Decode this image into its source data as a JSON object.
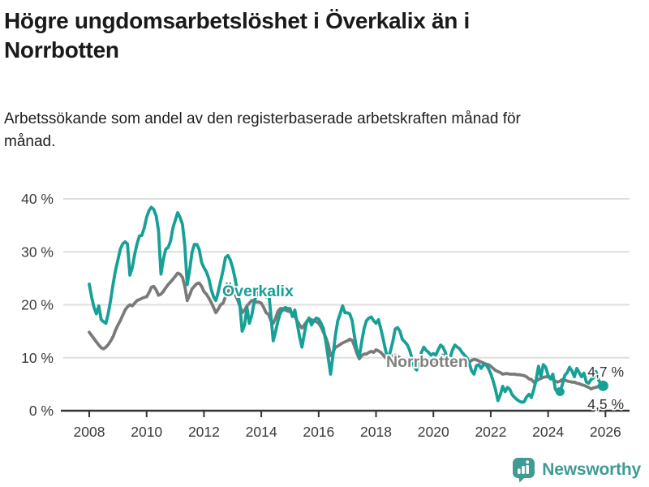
{
  "header": {
    "title": "Högre ungdomsarbetslöshet i Överkalix än i Norrbotten",
    "subtitle": "Arbetssökande som andel av den registerbaserade arbetskraften månad för månad."
  },
  "chart_data": {
    "type": "line",
    "title": "Högre ungdomsarbetslöshet i Överkalix än i Norrbotten",
    "x_unit": "month",
    "x_start_year": 2008,
    "x_end_label": "Nov 2025",
    "x_tick_labels": [
      "2008",
      "2010",
      "2012",
      "2014",
      "2016",
      "2018",
      "2020",
      "2022",
      "2024",
      "2026"
    ],
    "y_tick_labels": [
      "0 %",
      "10 %",
      "20 %",
      "30 %",
      "40 %"
    ],
    "ylim": [
      0,
      42
    ],
    "grid": true,
    "legend_position": "inline-labels",
    "series": [
      {
        "name": "Norrbotten",
        "color": "#7a7a7a",
        "label_color": "#808080",
        "values": [
          14.8,
          14.2,
          13.6,
          13.0,
          12.4,
          11.9,
          11.7,
          12.0,
          12.5,
          13.2,
          14.0,
          15.2,
          16.2,
          17.0,
          18.0,
          19.0,
          19.6,
          20.0,
          19.8,
          20.3,
          20.8,
          21.0,
          21.2,
          21.4,
          21.5,
          22.3,
          23.3,
          23.5,
          22.8,
          21.8,
          22.0,
          22.5,
          23.2,
          23.8,
          24.3,
          24.8,
          25.4,
          26.0,
          25.8,
          25.2,
          23.5,
          20.8,
          21.8,
          23.0,
          23.5,
          24.0,
          24.1,
          23.5,
          22.5,
          22.0,
          21.3,
          20.5,
          19.5,
          18.5,
          19.2,
          20.0,
          20.3,
          21.5,
          22.5,
          23.0,
          22.8,
          22.0,
          21.0,
          19.8,
          18.5,
          19.0,
          19.8,
          20.3,
          20.8,
          20.8,
          20.5,
          20.5,
          20.3,
          19.5,
          18.5,
          18.2,
          17.0,
          16.5,
          17.5,
          18.8,
          19.3,
          19.3,
          19.0,
          18.8,
          18.7,
          18.3,
          17.8,
          17.0,
          16.2,
          15.6,
          16.2,
          16.8,
          17.2,
          17.2,
          17.0,
          16.8,
          16.5,
          15.8,
          14.8,
          13.8,
          12.5,
          10.4,
          11.0,
          12.0,
          12.2,
          12.5,
          12.8,
          13.0,
          13.2,
          13.5,
          13.3,
          12.2,
          10.8,
          9.8,
          10.4,
          10.7,
          10.7,
          11.0,
          11.2,
          11.0,
          11.5,
          11.3,
          11.0,
          10.5,
          10.0,
          9.7,
          10.0,
          10.3,
          10.5,
          10.3,
          10.0,
          9.8,
          9.7,
          9.5,
          9.4,
          9.2,
          9.0,
          8.9,
          9.2,
          9.4,
          9.4,
          9.3,
          9.2,
          9.2,
          9.2,
          9.0,
          9.5,
          10.2,
          10.5,
          10.3,
          10.0,
          9.8,
          9.6,
          9.4,
          9.3,
          9.2,
          9.4,
          9.3,
          9.2,
          9.2,
          9.5,
          9.7,
          9.6,
          9.4,
          9.2,
          9.0,
          8.8,
          8.7,
          8.4,
          8.0,
          7.6,
          7.4,
          7.2,
          6.9,
          7.0,
          7.0,
          6.9,
          6.9,
          6.9,
          6.8,
          6.8,
          6.7,
          6.6,
          6.4,
          6.0,
          5.9,
          5.4,
          5.6,
          5.9,
          6.1,
          6.3,
          6.4,
          6.4,
          6.2,
          5.9,
          5.6,
          5.4,
          5.6,
          5.9,
          5.8,
          5.6,
          5.5,
          5.4,
          5.4,
          5.2,
          5.1,
          4.9,
          4.8,
          4.6,
          4.4,
          4.1,
          4.3,
          4.4,
          4.6,
          4.5,
          4.5
        ],
        "end_value_label": "4,5 %"
      },
      {
        "name": "Överkalix",
        "color": "#17a096",
        "label_color": "#17a096",
        "values": [
          23.9,
          21.5,
          19.5,
          18.3,
          19.8,
          17.2,
          16.8,
          16.5,
          18.5,
          21.0,
          24.0,
          26.5,
          28.5,
          30.5,
          31.5,
          31.9,
          31.5,
          25.6,
          27.0,
          29.5,
          31.5,
          33.0,
          33.1,
          34.5,
          36.5,
          37.8,
          38.4,
          38.0,
          36.8,
          34.0,
          25.8,
          28.5,
          30.5,
          30.8,
          32.0,
          34.5,
          36.0,
          37.4,
          36.5,
          35.2,
          31.2,
          23.8,
          26.5,
          29.9,
          31.4,
          31.4,
          30.5,
          28.0,
          27.0,
          26.2,
          25.0,
          23.0,
          21.5,
          20.8,
          22.5,
          24.5,
          26.5,
          28.9,
          29.3,
          28.5,
          27.0,
          25.0,
          22.5,
          20.0,
          15.0,
          16.2,
          19.5,
          16.5,
          18.0,
          20.5,
          22.0,
          22.8,
          23.0,
          22.8,
          21.5,
          22.8,
          18.0,
          13.2,
          15.0,
          17.0,
          18.5,
          19.0,
          19.5,
          19.3,
          19.3,
          17.8,
          19.0,
          16.5,
          14.0,
          12.0,
          14.5,
          16.8,
          17.5,
          16.2,
          17.0,
          17.5,
          17.3,
          16.5,
          15.5,
          13.0,
          10.0,
          6.9,
          10.5,
          14.2,
          17.0,
          18.3,
          19.8,
          18.5,
          18.5,
          18.3,
          17.0,
          14.0,
          11.4,
          10.2,
          13.0,
          15.5,
          17.0,
          17.5,
          17.7,
          17.0,
          16.5,
          17.2,
          15.5,
          13.5,
          11.4,
          9.5,
          11.2,
          13.0,
          15.4,
          15.7,
          15.0,
          13.5,
          13.0,
          12.5,
          11.5,
          10.0,
          8.2,
          7.7,
          9.5,
          11.0,
          12.0,
          11.4,
          11.0,
          10.5,
          10.8,
          10.5,
          11.5,
          12.4,
          12.0,
          11.0,
          9.5,
          10.0,
          11.5,
          12.4,
          12.0,
          11.7,
          11.0,
          10.5,
          10.0,
          9.0,
          7.5,
          6.9,
          8.5,
          8.7,
          8.0,
          8.7,
          8.7,
          8.0,
          7.0,
          5.6,
          4.0,
          1.9,
          3.0,
          4.6,
          3.6,
          4.4,
          4.0,
          3.0,
          2.5,
          2.1,
          1.8,
          1.6,
          1.7,
          2.6,
          3.1,
          2.5,
          4.0,
          5.9,
          8.4,
          6.4,
          8.7,
          8.2,
          6.7,
          6.0,
          6.9,
          4.1,
          3.4,
          3.6,
          5.0,
          6.7,
          7.2,
          8.2,
          7.5,
          6.4,
          8.0,
          7.2,
          6.4,
          7.1,
          5.4,
          5.2,
          5.9,
          6.2,
          7.4,
          5.9,
          5.1,
          4.7
        ],
        "end_value_label": "4,7 %"
      }
    ],
    "inline_labels": [
      {
        "text": "Överkalix",
        "series": "Överkalix"
      },
      {
        "text": "Norrbotten",
        "series": "Norrbotten"
      }
    ],
    "end_labels": {
      "top": "4,7 %",
      "bottom": "4,5 %"
    },
    "markers": [
      {
        "series": "Överkalix",
        "index": 197,
        "value": 3.6
      },
      {
        "series": "Överkalix",
        "index": 215,
        "value": 4.7
      }
    ],
    "colors": {
      "grid": "#dedede",
      "axis": "#333333",
      "tick_text": "#3a3a3a",
      "end_label_text": "#333333"
    }
  },
  "footer": {
    "brand": "Newsworthy",
    "brand_color": "#3f9b94"
  }
}
